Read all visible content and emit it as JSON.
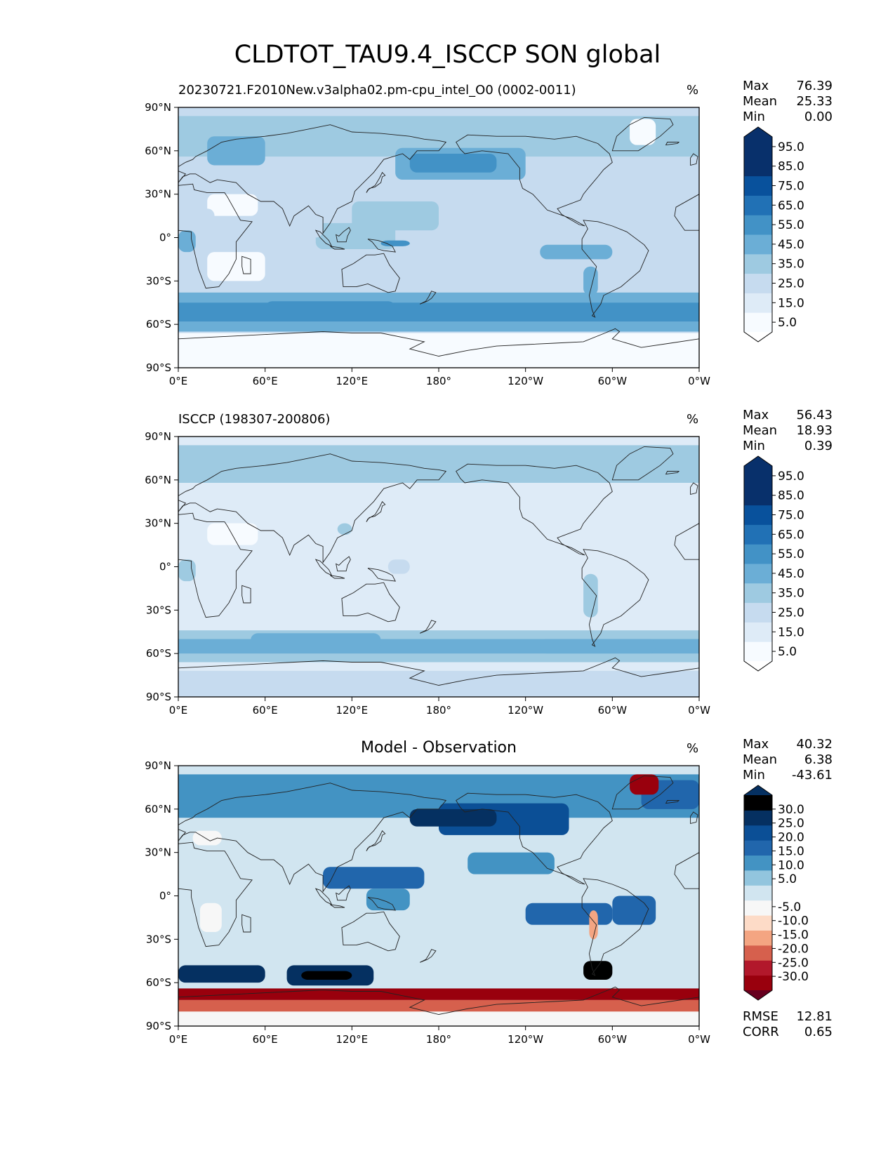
{
  "figure": {
    "title": "CLDTOT_TAU9.4_ISCCP SON global"
  },
  "chart_data": [
    {
      "type": "heatmap",
      "subtype": "filled-contour-map",
      "title": "20230721.F2010New.v3alpha02.pm-cpu_intel_O0 (0002-0011)",
      "units": "%",
      "stats": {
        "max_label": "Max",
        "max": "76.39",
        "mean_label": "Mean",
        "mean": "25.33",
        "min_label": "Min",
        "min": "0.00"
      },
      "xlim": [
        0,
        360
      ],
      "ylim": [
        -90,
        90
      ],
      "xticks": [
        "0°E",
        "60°E",
        "120°E",
        "180°",
        "120°W",
        "60°W",
        "0°W"
      ],
      "yticks": [
        "90°N",
        "60°N",
        "30°N",
        "0°",
        "30°S",
        "60°S",
        "90°S"
      ],
      "colorbar": {
        "levels": [
          0,
          10,
          20,
          30,
          40,
          50,
          60,
          70,
          80,
          90,
          100
        ],
        "extend": "both",
        "tick_labels": [
          "5.0",
          "15.0",
          "25.0",
          "35.0",
          "45.0",
          "55.0",
          "65.0",
          "75.0",
          "85.0",
          "95.0"
        ]
      }
    },
    {
      "type": "heatmap",
      "subtype": "filled-contour-map",
      "title": "ISCCP (198307-200806)",
      "units": "%",
      "stats": {
        "max_label": "Max",
        "max": "56.43",
        "mean_label": "Mean",
        "mean": "18.93",
        "min_label": "Min",
        "min": "0.39"
      },
      "xlim": [
        0,
        360
      ],
      "ylim": [
        -90,
        90
      ],
      "xticks": [
        "0°E",
        "60°E",
        "120°E",
        "180°",
        "120°W",
        "60°W",
        "0°W"
      ],
      "yticks": [
        "90°N",
        "60°N",
        "30°N",
        "0°",
        "30°S",
        "60°S",
        "90°S"
      ],
      "colorbar": {
        "levels": [
          0,
          10,
          20,
          30,
          40,
          50,
          60,
          70,
          80,
          90,
          100
        ],
        "extend": "both",
        "tick_labels": [
          "5.0",
          "15.0",
          "25.0",
          "35.0",
          "45.0",
          "55.0",
          "65.0",
          "75.0",
          "85.0",
          "95.0"
        ]
      }
    },
    {
      "type": "heatmap",
      "subtype": "filled-contour-map",
      "title": "Model - Observation",
      "units": "%",
      "stats": {
        "max_label": "Max",
        "max": "40.32",
        "mean_label": "Mean",
        "mean": "6.38",
        "min_label": "Min",
        "min": "-43.61"
      },
      "metrics": {
        "rmse_label": "RMSE",
        "rmse": "12.81",
        "corr_label": "CORR",
        "corr": "0.65"
      },
      "xlim": [
        0,
        360
      ],
      "ylim": [
        -90,
        90
      ],
      "xticks": [
        "0°E",
        "60°E",
        "120°E",
        "180°",
        "120°W",
        "60°W",
        "0°W"
      ],
      "yticks": [
        "90°N",
        "60°N",
        "30°N",
        "0°",
        "30°S",
        "60°S",
        "90°S"
      ],
      "colorbar": {
        "levels": [
          -35,
          -30,
          -25,
          -20,
          -15,
          -10,
          -5,
          5,
          10,
          15,
          20,
          25,
          30,
          35
        ],
        "extend": "both",
        "tick_labels": [
          "-30.0",
          "-25.0",
          "-20.0",
          "-15.0",
          "-10.0",
          "-5.0",
          "5.0",
          "10.0",
          "15.0",
          "20.0",
          "25.0",
          "30.0"
        ]
      }
    }
  ],
  "colors": {
    "seq": [
      "#f7fbff",
      "#deebf7",
      "#c6dbef",
      "#9ecae1",
      "#6baed6",
      "#4292c6",
      "#2171b5",
      "#08519c",
      "#08306b"
    ],
    "seq_under": "#ffffff",
    "seq_over": "#08306b",
    "div": [
      "#67001f",
      "#99000d",
      "#b2182b",
      "#d6604d",
      "#f4a582",
      "#fddbc7",
      "#f7f7f7",
      "#d1e5f0",
      "#92c5de",
      "#4393c3",
      "#2166ac",
      "#0b4f96",
      "#053061"
    ],
    "land_line": "#222222"
  }
}
